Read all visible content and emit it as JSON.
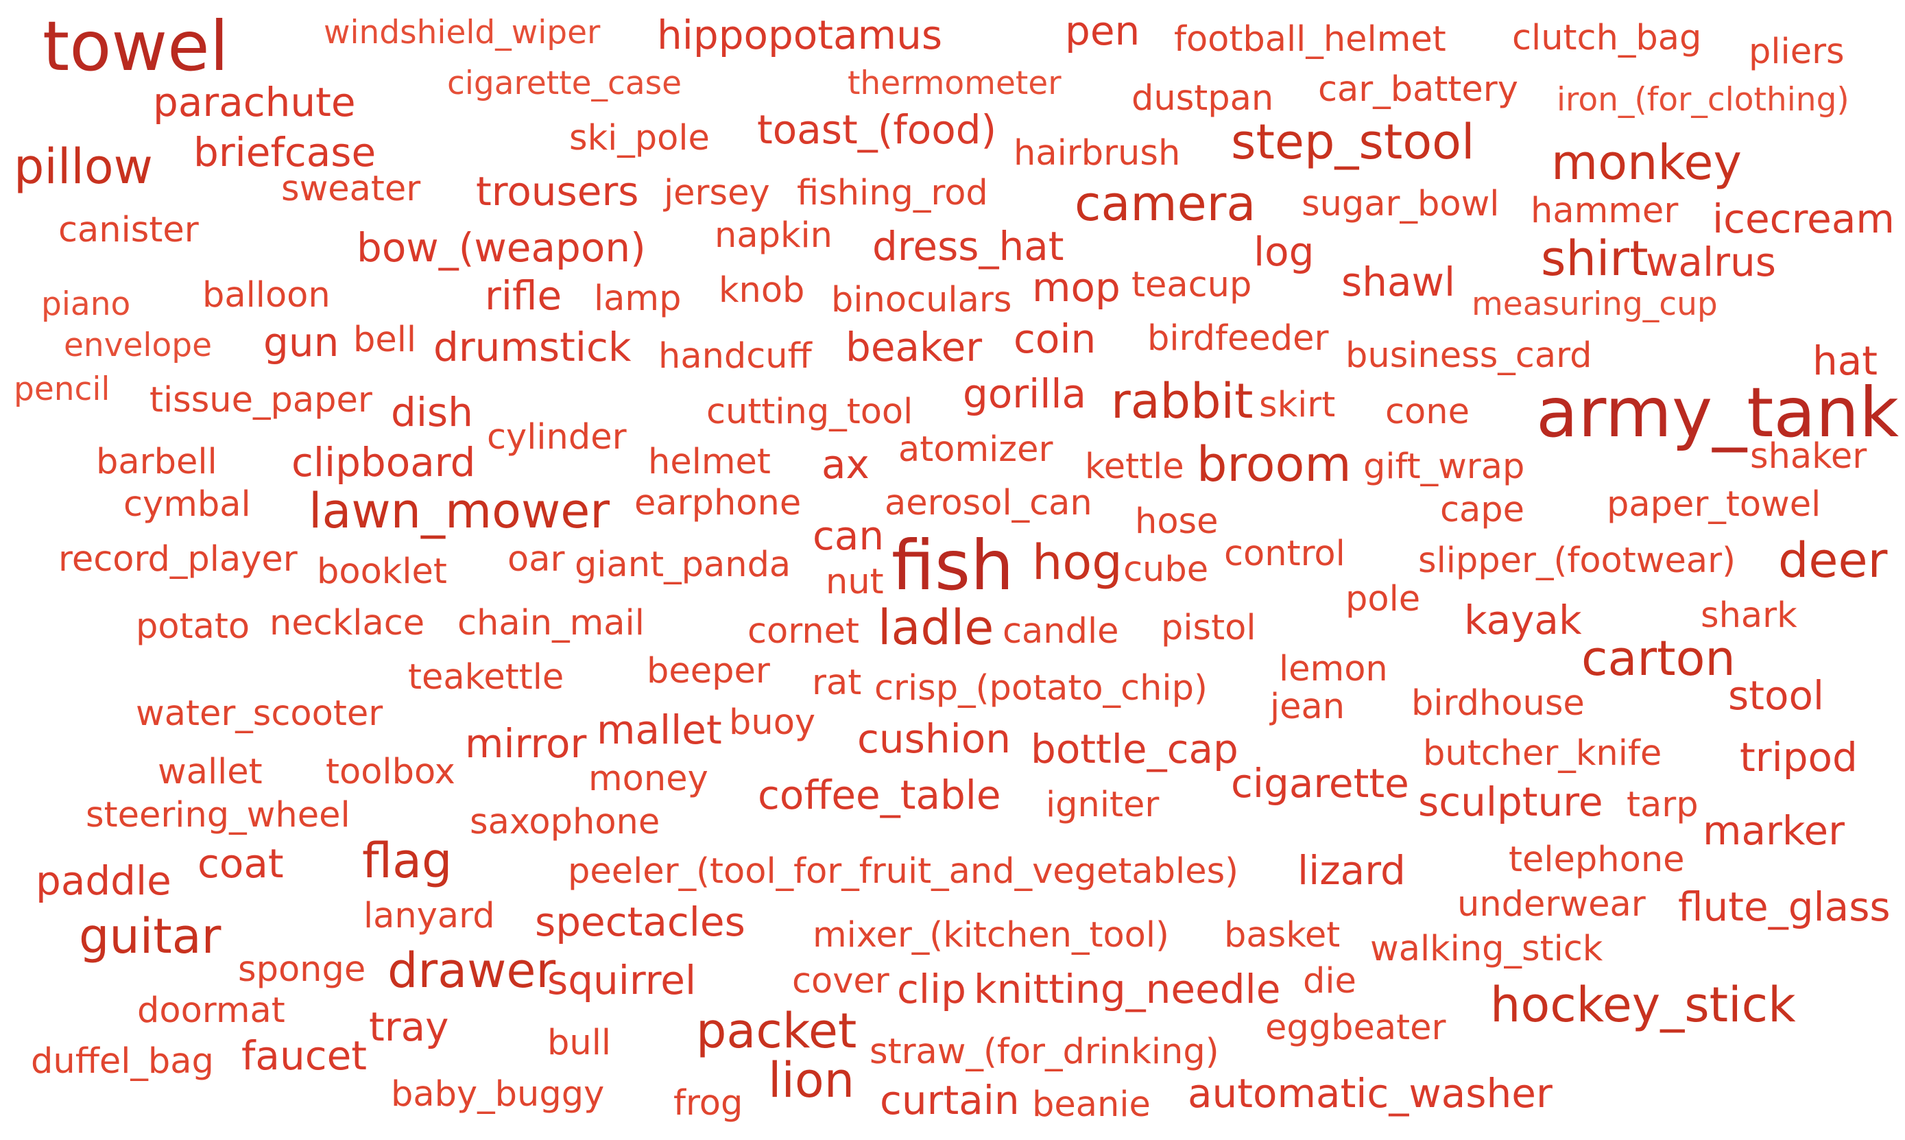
{
  "words": [
    "towel",
    "windshield_wiper",
    "hippopotamus",
    "pen",
    "football_helmet",
    "clutch_bag",
    "pliers",
    "parachute",
    "cigarette_case",
    "thermometer",
    "dustpan",
    "car_battery",
    "iron_(for_clothing)",
    "pillow",
    "briefcase",
    "ski_pole",
    "toast_(food)",
    "hairbrush",
    "step_stool",
    "monkey",
    "sweater",
    "trousers",
    "jersey",
    "fishing_rod",
    "camera",
    "sugar_bowl",
    "hammer",
    "icecream",
    "canister",
    "bow_(weapon)",
    "napkin",
    "dress_hat",
    "log",
    "shirt",
    "walrus",
    "piano",
    "balloon",
    "rifle",
    "lamp",
    "knob",
    "binoculars",
    "mop",
    "teacup",
    "shawl",
    "measuring_cup",
    "envelope",
    "gun",
    "bell",
    "drumstick",
    "handcuff",
    "beaker",
    "coin",
    "birdfeeder",
    "business_card",
    "hat",
    "pencil",
    "tissue_paper",
    "dish",
    "cutting_tool",
    "gorilla",
    "rabbit",
    "skirt",
    "cone",
    "army_tank",
    "cylinder",
    "barbell",
    "clipboard",
    "helmet",
    "ax",
    "atomizer",
    "kettle",
    "broom",
    "gift_wrap",
    "shaker",
    "cymbal",
    "lawn_mower",
    "earphone",
    "aerosol_can",
    "cape",
    "paper_towel",
    "hose",
    "can",
    "record_player",
    "booklet",
    "oar",
    "giant_panda",
    "nut",
    "fish",
    "hog",
    "cube",
    "control",
    "slipper_(footwear)",
    "deer",
    "pole",
    "potato",
    "necklace",
    "chain_mail",
    "cornet",
    "ladle",
    "candle",
    "pistol",
    "kayak",
    "shark",
    "teakettle",
    "beeper",
    "rat",
    "crisp_(potato_chip)",
    "lemon",
    "carton",
    "jean",
    "birdhouse",
    "stool",
    "water_scooter",
    "buoy",
    "mallet",
    "mirror",
    "cushion",
    "bottle_cap",
    "butcher_knife",
    "tripod",
    "wallet",
    "toolbox",
    "money",
    "coffee_table",
    "igniter",
    "cigarette",
    "sculpture",
    "tarp",
    "steering_wheel",
    "saxophone",
    "marker",
    "flag",
    "paddle",
    "coat",
    "peeler_(tool_for_fruit_and_vegetables)",
    "lizard",
    "telephone",
    "lanyard",
    "spectacles",
    "underwear",
    "flute_glass",
    "guitar",
    "mixer_(kitchen_tool)",
    "basket",
    "walking_stick",
    "sponge",
    "drawer",
    "squirrel",
    "cover",
    "clip",
    "knitting_needle",
    "die",
    "doormat",
    "hockey_stick",
    "tray",
    "packet",
    "eggbeater",
    "bull",
    "duffel_bag",
    "faucet",
    "straw_(for_drinking)",
    "lion",
    "baby_buggy",
    "frog",
    "curtain",
    "beanie",
    "automatic_washer"
  ],
  "palette": {
    "darkest": "#b92a20",
    "dark": "#c8321f",
    "mid": "#d93a2a",
    "base": "#e0452f",
    "light": "#e54f38",
    "background": "#ffffff"
  }
}
